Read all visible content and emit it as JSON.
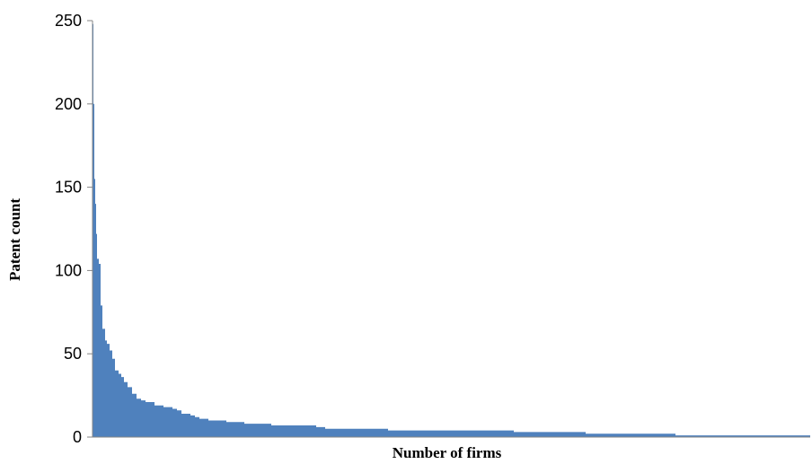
{
  "chart_data": {
    "type": "area",
    "title": "",
    "xlabel": "Number of firms",
    "ylabel": "Patent count",
    "ylim": [
      0,
      250
    ],
    "yticks": [
      0,
      50,
      100,
      150,
      200,
      250
    ],
    "grid": false,
    "legend": "none",
    "series_color": "#4f81bd",
    "axis_color": "#868686",
    "series": [
      {
        "x": [
          1,
          2,
          3,
          4,
          5,
          6,
          8,
          10,
          12,
          15,
          17,
          20,
          23,
          26,
          30,
          33,
          36,
          40,
          45,
          50,
          55,
          60,
          70,
          80,
          90,
          95,
          100,
          110,
          115,
          120,
          130,
          140,
          150,
          160,
          170,
          185,
          200,
          210,
          250,
          260,
          300,
          330,
          400,
          470,
          550,
          650,
          800
        ],
        "y": [
          248,
          200,
          155,
          140,
          122,
          107,
          104,
          79,
          65,
          58,
          56,
          52,
          47,
          40,
          38,
          36,
          33,
          30,
          26,
          23,
          22,
          21,
          19,
          18,
          17,
          16,
          14,
          13,
          12,
          11,
          10,
          10,
          9,
          9,
          8,
          8,
          7,
          7,
          6,
          5,
          5,
          4,
          4,
          3,
          2,
          1,
          0.5
        ]
      }
    ]
  }
}
